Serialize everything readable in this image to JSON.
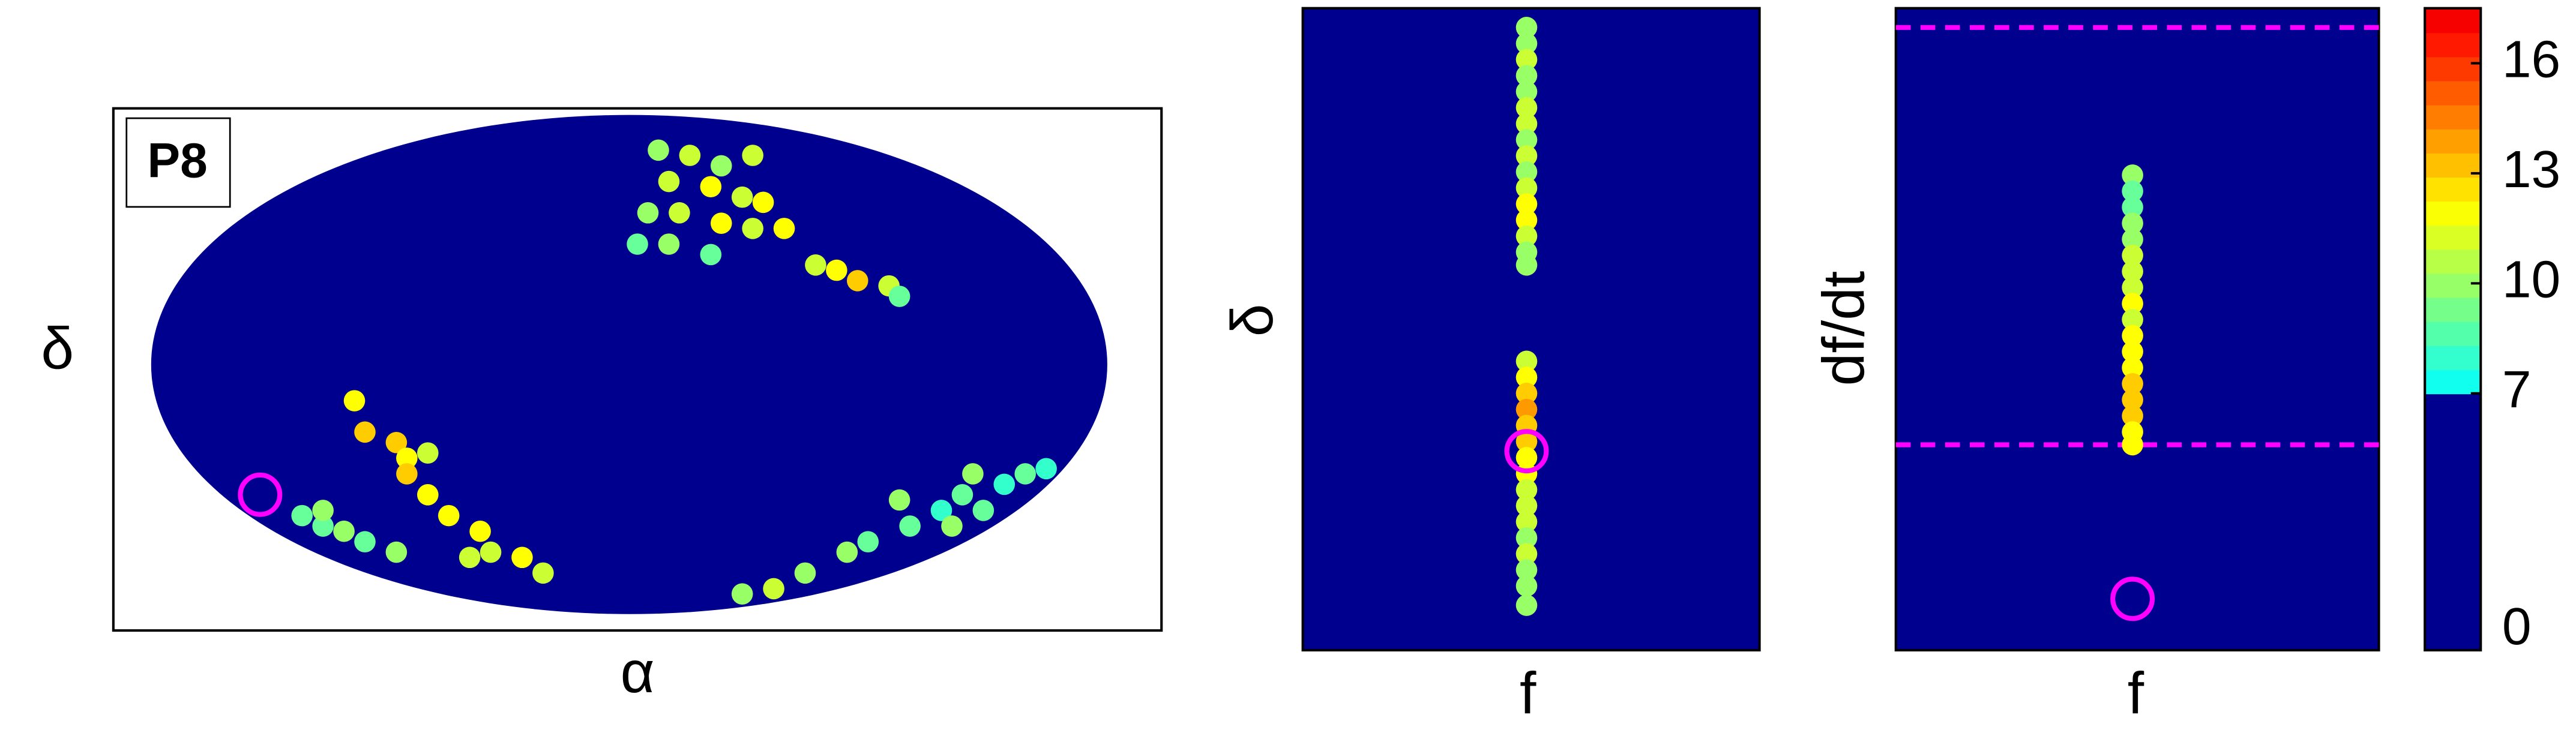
{
  "chart_data": [
    {
      "type": "scatter",
      "xlabel": "α",
      "ylabel": "δ",
      "annotation": "P8",
      "background": "#00008f",
      "xlim": [
        0,
        1
      ],
      "ylim": [
        0,
        1
      ],
      "x": [
        0.52,
        0.55,
        0.58,
        0.61,
        0.53,
        0.57,
        0.6,
        0.51,
        0.54,
        0.58,
        0.61,
        0.5,
        0.53,
        0.57,
        0.64,
        0.67,
        0.69,
        0.71,
        0.74,
        0.75,
        0.62,
        0.23,
        0.24,
        0.27,
        0.28,
        0.28,
        0.3,
        0.3,
        0.32,
        0.35,
        0.36,
        0.39,
        0.41,
        0.34,
        0.18,
        0.2,
        0.22,
        0.24,
        0.27,
        0.2,
        0.6,
        0.63,
        0.66,
        0.7,
        0.72,
        0.75,
        0.76,
        0.79,
        0.81,
        0.83,
        0.82,
        0.85,
        0.87,
        0.89,
        0.8
      ],
      "y": [
        0.92,
        0.91,
        0.89,
        0.91,
        0.86,
        0.85,
        0.83,
        0.8,
        0.8,
        0.78,
        0.77,
        0.74,
        0.74,
        0.72,
        0.77,
        0.7,
        0.69,
        0.67,
        0.66,
        0.64,
        0.82,
        0.44,
        0.38,
        0.36,
        0.33,
        0.3,
        0.26,
        0.34,
        0.22,
        0.19,
        0.15,
        0.14,
        0.11,
        0.14,
        0.22,
        0.2,
        0.19,
        0.17,
        0.15,
        0.23,
        0.07,
        0.08,
        0.11,
        0.15,
        0.17,
        0.25,
        0.2,
        0.23,
        0.26,
        0.23,
        0.3,
        0.28,
        0.3,
        0.31,
        0.2
      ],
      "values": [
        10,
        11,
        10,
        11,
        11,
        12,
        11,
        10,
        11,
        12,
        11,
        9,
        10,
        9,
        12,
        11,
        12,
        13,
        11,
        9,
        12,
        12,
        13,
        13,
        12,
        13,
        12,
        11,
        12,
        12,
        11,
        12,
        11,
        11,
        9,
        9,
        10,
        9,
        10,
        10,
        10,
        11,
        10,
        10,
        9,
        10,
        9,
        8,
        9,
        9,
        10,
        8,
        9,
        8,
        10
      ],
      "marker": {
        "x": 0.14,
        "y": 0.26,
        "color": "#ff00ff"
      }
    },
    {
      "type": "scatter",
      "xlabel": "f",
      "ylabel": "δ",
      "background": "#00008f",
      "xlim": [
        0,
        1
      ],
      "ylim": [
        0,
        1
      ],
      "x": [
        0.49,
        0.49,
        0.49,
        0.49,
        0.49,
        0.49,
        0.49,
        0.49,
        0.49,
        0.49,
        0.49,
        0.49,
        0.49,
        0.49,
        0.49,
        0.49,
        0.49,
        0.49,
        0.49,
        0.49,
        0.49,
        0.49,
        0.49,
        0.49,
        0.49,
        0.49,
        0.49,
        0.49,
        0.49,
        0.49,
        0.49,
        0.49
      ],
      "y": [
        0.97,
        0.945,
        0.92,
        0.895,
        0.87,
        0.845,
        0.82,
        0.795,
        0.77,
        0.745,
        0.72,
        0.695,
        0.67,
        0.645,
        0.62,
        0.6,
        0.45,
        0.425,
        0.4,
        0.375,
        0.35,
        0.325,
        0.3,
        0.275,
        0.25,
        0.225,
        0.2,
        0.175,
        0.15,
        0.125,
        0.1,
        0.07
      ],
      "values": [
        10,
        10,
        11,
        10,
        10,
        11,
        11,
        10,
        11,
        10,
        11,
        12,
        12,
        11,
        10,
        10,
        11,
        12,
        13,
        14,
        13,
        13,
        12,
        12,
        11,
        11,
        11,
        10,
        11,
        10,
        10,
        10
      ],
      "marker": {
        "x": 0.49,
        "y": 0.31,
        "color": "#ff00ff"
      }
    },
    {
      "type": "scatter",
      "xlabel": "f",
      "ylabel": "df/dt",
      "background": "#00008f",
      "xlim": [
        0,
        1
      ],
      "ylim": [
        0,
        1
      ],
      "x": [
        0.49,
        0.49,
        0.49,
        0.49,
        0.49,
        0.49,
        0.49,
        0.49,
        0.49,
        0.49,
        0.49,
        0.49,
        0.49,
        0.49,
        0.49,
        0.49,
        0.49,
        0.49
      ],
      "y": [
        0.74,
        0.715,
        0.69,
        0.665,
        0.64,
        0.615,
        0.59,
        0.565,
        0.54,
        0.515,
        0.49,
        0.465,
        0.44,
        0.415,
        0.39,
        0.365,
        0.34,
        0.32
      ],
      "values": [
        10,
        9,
        9,
        10,
        10,
        11,
        11,
        11,
        12,
        11,
        12,
        12,
        12,
        13,
        13,
        13,
        12,
        12
      ],
      "hlines": [
        0.97,
        0.32
      ],
      "marker": {
        "x": 0.49,
        "y": 0.08,
        "color": "#ff00ff"
      }
    },
    {
      "type": "colorbar",
      "ylim": [
        0,
        17.5
      ],
      "yticks": [
        0,
        7,
        10,
        13,
        16
      ],
      "background": "#00008f"
    }
  ]
}
